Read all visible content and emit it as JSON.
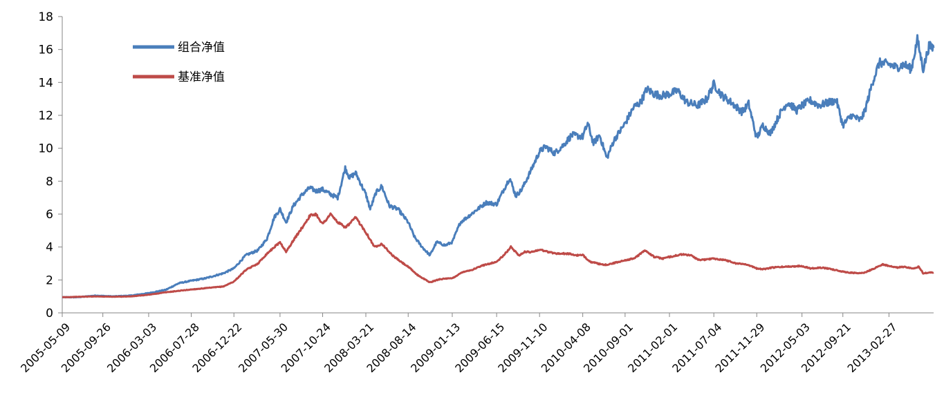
{
  "chart_data": {
    "type": "line",
    "title": "",
    "xlabel": "",
    "ylabel": "",
    "ylim": [
      0,
      18
    ],
    "yticks": [
      0,
      2,
      4,
      6,
      8,
      10,
      12,
      14,
      16,
      18
    ],
    "ytick_labels": [
      "0",
      "2",
      "4",
      "6",
      "8",
      "10",
      "12",
      "14",
      "16",
      "18"
    ],
    "x_range": [
      "2005-05-09",
      "2013-07-31"
    ],
    "xtick_labels": [
      "2005-05-09",
      "2005-09-26",
      "2006-03-03",
      "2006-07-28",
      "2006-12-22",
      "2007-05-30",
      "2007-10-24",
      "2008-03-21",
      "2008-08-14",
      "2009-01-13",
      "2009-06-15",
      "2009-11-10",
      "2010-04-08",
      "2010-09-01",
      "2011-02-01",
      "2011-07-04",
      "2011-11-29",
      "2012-05-03",
      "2012-09-21",
      "2013-02-27"
    ],
    "grid": false,
    "legend_position": "top-left",
    "series": [
      {
        "name": "组合净值",
        "color": "#4a7ebb",
        "x": [
          "2005-05-09",
          "2005-07-01",
          "2005-09-01",
          "2005-11-01",
          "2006-01-01",
          "2006-03-03",
          "2006-05-01",
          "2006-06-15",
          "2006-07-28",
          "2006-09-15",
          "2006-11-15",
          "2006-12-22",
          "2007-02-01",
          "2007-03-15",
          "2007-04-15",
          "2007-05-10",
          "2007-05-30",
          "2007-06-20",
          "2007-07-15",
          "2007-08-15",
          "2007-09-10",
          "2007-10-01",
          "2007-10-24",
          "2007-11-20",
          "2007-12-15",
          "2008-01-10",
          "2008-01-25",
          "2008-02-15",
          "2008-03-21",
          "2008-04-05",
          "2008-04-25",
          "2008-05-15",
          "2008-06-10",
          "2008-07-10",
          "2008-08-14",
          "2008-09-05",
          "2008-10-01",
          "2008-10-28",
          "2008-11-20",
          "2008-12-20",
          "2009-01-13",
          "2009-02-10",
          "2009-03-05",
          "2009-04-10",
          "2009-05-10",
          "2009-06-15",
          "2009-07-10",
          "2009-07-30",
          "2009-08-20",
          "2009-09-10",
          "2009-10-10",
          "2009-11-10",
          "2009-12-01",
          "2010-01-01",
          "2010-02-01",
          "2010-03-01",
          "2010-04-08",
          "2010-04-25",
          "2010-05-15",
          "2010-06-05",
          "2010-06-30",
          "2010-07-25",
          "2010-09-01",
          "2010-10-01",
          "2010-10-25",
          "2010-11-15",
          "2010-12-10",
          "2011-01-05",
          "2011-02-01",
          "2011-03-01",
          "2011-04-01",
          "2011-05-10",
          "2011-06-10",
          "2011-07-04",
          "2011-08-01",
          "2011-09-01",
          "2011-10-10",
          "2011-11-01",
          "2011-11-29",
          "2011-12-20",
          "2012-01-15",
          "2012-02-20",
          "2012-03-15",
          "2012-04-15",
          "2012-05-03",
          "2012-06-01",
          "2012-07-01",
          "2012-08-05",
          "2012-08-30",
          "2012-09-21",
          "2012-10-20",
          "2012-11-20",
          "2012-12-05",
          "2013-01-01",
          "2013-01-25",
          "2013-02-27",
          "2013-03-25",
          "2013-04-20",
          "2013-05-15",
          "2013-06-05",
          "2013-06-25",
          "2013-07-15",
          "2013-07-31"
        ],
        "values": [
          0.95,
          0.95,
          1.05,
          1.0,
          1.05,
          1.2,
          1.4,
          1.8,
          1.95,
          2.1,
          2.4,
          2.7,
          3.5,
          3.8,
          4.5,
          5.8,
          6.3,
          5.5,
          6.5,
          7.2,
          7.6,
          7.4,
          7.5,
          7.2,
          7.0,
          8.8,
          8.2,
          8.5,
          7.2,
          6.3,
          7.3,
          7.7,
          6.5,
          6.3,
          5.5,
          4.6,
          4.0,
          3.5,
          4.3,
          4.1,
          4.3,
          5.5,
          5.8,
          6.3,
          6.7,
          6.6,
          7.5,
          8.2,
          7.1,
          7.5,
          8.6,
          9.8,
          10.1,
          9.7,
          10.2,
          10.8,
          10.7,
          11.5,
          10.3,
          10.8,
          9.4,
          10.5,
          11.5,
          12.5,
          12.8,
          13.6,
          13.3,
          13.2,
          13.3,
          13.5,
          12.8,
          12.6,
          13.0,
          13.9,
          13.2,
          12.8,
          12.2,
          12.7,
          10.6,
          11.4,
          10.9,
          12.2,
          12.8,
          12.3,
          12.6,
          12.9,
          12.6,
          12.8,
          12.9,
          11.4,
          12.0,
          11.7,
          12.2,
          14.0,
          15.2,
          15.1,
          14.9,
          15.1,
          14.8,
          16.6,
          14.8,
          16.2,
          16.1
        ]
      },
      {
        "name": "基准净值",
        "color": "#be4b48",
        "x": [
          "2005-05-09",
          "2005-09-01",
          "2005-11-01",
          "2006-01-01",
          "2006-03-03",
          "2006-05-01",
          "2006-07-28",
          "2006-09-15",
          "2006-11-15",
          "2006-12-22",
          "2007-02-01",
          "2007-03-15",
          "2007-04-15",
          "2007-05-30",
          "2007-06-20",
          "2007-07-15",
          "2007-08-15",
          "2007-09-10",
          "2007-10-01",
          "2007-10-24",
          "2007-11-20",
          "2007-12-15",
          "2008-01-10",
          "2008-01-25",
          "2008-02-15",
          "2008-03-21",
          "2008-04-20",
          "2008-05-15",
          "2008-06-20",
          "2008-07-20",
          "2008-08-14",
          "2008-09-15",
          "2008-10-28",
          "2008-12-01",
          "2009-01-13",
          "2009-02-20",
          "2009-03-20",
          "2009-05-01",
          "2009-06-15",
          "2009-07-10",
          "2009-08-03",
          "2009-08-31",
          "2009-09-20",
          "2009-10-15",
          "2009-11-10",
          "2009-12-10",
          "2010-01-10",
          "2010-02-15",
          "2010-03-15",
          "2010-04-08",
          "2010-05-05",
          "2010-06-20",
          "2010-07-20",
          "2010-09-01",
          "2010-10-01",
          "2010-11-10",
          "2010-12-10",
          "2011-01-10",
          "2011-02-01",
          "2011-03-15",
          "2011-04-15",
          "2011-05-15",
          "2011-07-04",
          "2011-08-15",
          "2011-09-20",
          "2011-10-25",
          "2011-11-29",
          "2011-12-25",
          "2012-01-20",
          "2012-03-01",
          "2012-05-03",
          "2012-06-01",
          "2012-07-01",
          "2012-08-01",
          "2012-09-21",
          "2012-10-15",
          "2012-11-15",
          "2012-12-05",
          "2013-01-01",
          "2013-02-05",
          "2013-02-27",
          "2013-03-25",
          "2013-04-20",
          "2013-05-20",
          "2013-06-10",
          "2013-06-25",
          "2013-07-15",
          "2013-07-31"
        ],
        "values": [
          0.95,
          1.0,
          0.98,
          1.0,
          1.1,
          1.25,
          1.42,
          1.5,
          1.6,
          1.9,
          2.6,
          3.0,
          3.6,
          4.3,
          3.7,
          4.4,
          5.2,
          5.9,
          6.0,
          5.4,
          6.0,
          5.5,
          5.2,
          5.4,
          5.8,
          4.9,
          4.0,
          4.2,
          3.5,
          3.1,
          2.8,
          2.3,
          1.85,
          2.05,
          2.1,
          2.5,
          2.6,
          2.9,
          3.1,
          3.5,
          4.0,
          3.5,
          3.7,
          3.7,
          3.85,
          3.7,
          3.6,
          3.6,
          3.5,
          3.5,
          3.1,
          2.9,
          3.0,
          3.2,
          3.3,
          3.8,
          3.4,
          3.3,
          3.4,
          3.55,
          3.5,
          3.2,
          3.3,
          3.2,
          3.0,
          2.95,
          2.7,
          2.65,
          2.75,
          2.8,
          2.85,
          2.7,
          2.75,
          2.7,
          2.5,
          2.45,
          2.4,
          2.45,
          2.65,
          2.95,
          2.85,
          2.75,
          2.8,
          2.7,
          2.8,
          2.4,
          2.45,
          2.45
        ]
      }
    ]
  }
}
